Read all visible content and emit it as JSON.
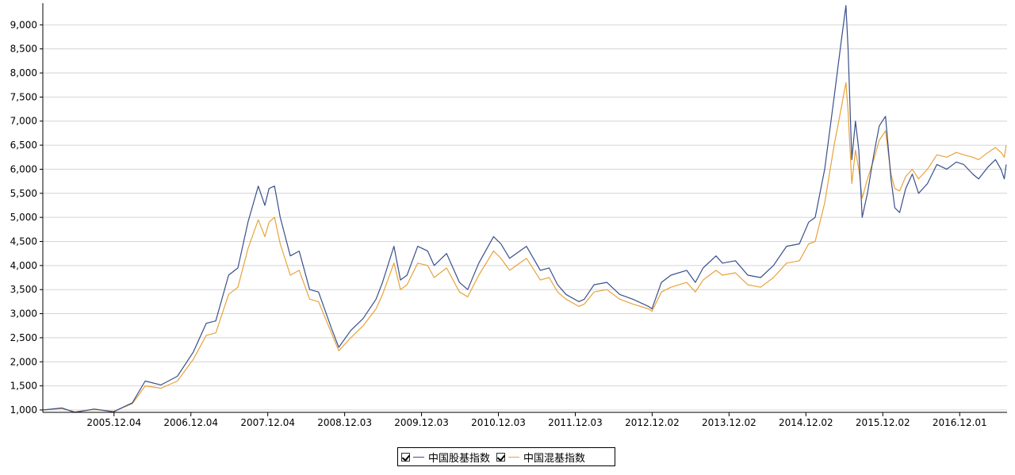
{
  "chart_data": {
    "type": "line",
    "title": "",
    "xlabel": "",
    "ylabel": "",
    "ylim": [
      950,
      9450
    ],
    "y_ticks": [
      1000,
      1500,
      2000,
      2500,
      3000,
      3500,
      4000,
      4500,
      5000,
      5500,
      6000,
      6500,
      7000,
      7500,
      8000,
      8500,
      9000
    ],
    "y_tick_labels": [
      "1,000",
      "1,500",
      "2,000",
      "2,500",
      "3,000",
      "3,500",
      "4,000",
      "4,500",
      "5,000",
      "5,500",
      "6,000",
      "6,500",
      "7,000",
      "7,500",
      "8,000",
      "8,500",
      "9,000"
    ],
    "xlim": [
      "2004-12-31",
      "2017-07-14"
    ],
    "x_tick_labels": [
      "2005.12.04",
      "2006.12.04",
      "2007.12.04",
      "2008.12.03",
      "2009.12.03",
      "2010.12.03",
      "2011.12.03",
      "2012.12.02",
      "2013.12.02",
      "2014.12.02",
      "2015.12.02",
      "2016.12.01"
    ],
    "grid": "horizontal",
    "legend_position": "bottom",
    "legend": {
      "items": [
        {
          "label": "中国股基指数",
          "color": "#3a4f8c",
          "checked": true
        },
        {
          "label": "中国混基指数",
          "color": "#e8a33a",
          "checked": true
        }
      ]
    },
    "series": [
      {
        "name": "中国股基指数",
        "color": "#3a4f8c",
        "points": [
          [
            "2004-12-31",
            1000
          ],
          [
            "2005-03-31",
            1040
          ],
          [
            "2005-06-01",
            950
          ],
          [
            "2005-09-01",
            1020
          ],
          [
            "2005-12-01",
            960
          ],
          [
            "2006-03-01",
            1150
          ],
          [
            "2006-05-01",
            1600
          ],
          [
            "2006-07-15",
            1520
          ],
          [
            "2006-10-01",
            1700
          ],
          [
            "2006-12-15",
            2200
          ],
          [
            "2007-02-15",
            2800
          ],
          [
            "2007-04-01",
            2850
          ],
          [
            "2007-06-01",
            3800
          ],
          [
            "2007-07-15",
            3950
          ],
          [
            "2007-09-01",
            4900
          ],
          [
            "2007-10-20",
            5650
          ],
          [
            "2007-11-20",
            5250
          ],
          [
            "2007-12-10",
            5600
          ],
          [
            "2008-01-05",
            5650
          ],
          [
            "2008-02-01",
            5000
          ],
          [
            "2008-03-20",
            4200
          ],
          [
            "2008-05-01",
            4300
          ],
          [
            "2008-06-20",
            3500
          ],
          [
            "2008-08-01",
            3450
          ],
          [
            "2008-10-01",
            2700
          ],
          [
            "2008-11-05",
            2300
          ],
          [
            "2009-01-01",
            2650
          ],
          [
            "2009-03-01",
            2900
          ],
          [
            "2009-05-01",
            3300
          ],
          [
            "2009-06-01",
            3650
          ],
          [
            "2009-07-25",
            4400
          ],
          [
            "2009-08-25",
            3700
          ],
          [
            "2009-09-25",
            3800
          ],
          [
            "2009-11-15",
            4400
          ],
          [
            "2010-01-01",
            4300
          ],
          [
            "2010-02-01",
            4000
          ],
          [
            "2010-04-01",
            4250
          ],
          [
            "2010-06-01",
            3650
          ],
          [
            "2010-07-10",
            3500
          ],
          [
            "2010-09-01",
            4050
          ],
          [
            "2010-11-10",
            4600
          ],
          [
            "2010-12-15",
            4450
          ],
          [
            "2011-01-25",
            4150
          ],
          [
            "2011-04-15",
            4400
          ],
          [
            "2011-06-20",
            3900
          ],
          [
            "2011-08-01",
            3950
          ],
          [
            "2011-09-10",
            3600
          ],
          [
            "2011-10-20",
            3400
          ],
          [
            "2011-12-20",
            3250
          ],
          [
            "2012-01-15",
            3300
          ],
          [
            "2012-03-01",
            3600
          ],
          [
            "2012-05-01",
            3650
          ],
          [
            "2012-07-01",
            3400
          ],
          [
            "2012-09-01",
            3300
          ],
          [
            "2012-11-15",
            3150
          ],
          [
            "2012-12-01",
            3100
          ],
          [
            "2013-01-15",
            3650
          ],
          [
            "2013-03-01",
            3800
          ],
          [
            "2013-05-15",
            3900
          ],
          [
            "2013-06-25",
            3650
          ],
          [
            "2013-08-01",
            3950
          ],
          [
            "2013-10-01",
            4200
          ],
          [
            "2013-11-01",
            4050
          ],
          [
            "2014-01-01",
            4100
          ],
          [
            "2014-03-01",
            3800
          ],
          [
            "2014-05-01",
            3750
          ],
          [
            "2014-07-01",
            4000
          ],
          [
            "2014-09-01",
            4400
          ],
          [
            "2014-11-01",
            4450
          ],
          [
            "2014-12-15",
            4900
          ],
          [
            "2015-01-15",
            5000
          ],
          [
            "2015-03-01",
            6000
          ],
          [
            "2015-04-15",
            7500
          ],
          [
            "2015-05-20",
            8700
          ],
          [
            "2015-06-10",
            9400
          ],
          [
            "2015-06-20",
            8500
          ],
          [
            "2015-07-08",
            6200
          ],
          [
            "2015-07-25",
            7000
          ],
          [
            "2015-08-10",
            6400
          ],
          [
            "2015-08-26",
            5000
          ],
          [
            "2015-09-20",
            5500
          ],
          [
            "2015-10-20",
            6300
          ],
          [
            "2015-11-15",
            6900
          ],
          [
            "2015-12-15",
            7100
          ],
          [
            "2016-01-10",
            5800
          ],
          [
            "2016-01-28",
            5200
          ],
          [
            "2016-02-20",
            5100
          ],
          [
            "2016-03-20",
            5600
          ],
          [
            "2016-04-20",
            5900
          ],
          [
            "2016-05-20",
            5500
          ],
          [
            "2016-07-01",
            5700
          ],
          [
            "2016-08-15",
            6100
          ],
          [
            "2016-10-01",
            6000
          ],
          [
            "2016-11-15",
            6150
          ],
          [
            "2016-12-20",
            6100
          ],
          [
            "2017-02-01",
            5900
          ],
          [
            "2017-03-01",
            5800
          ],
          [
            "2017-04-15",
            6050
          ],
          [
            "2017-05-20",
            6200
          ],
          [
            "2017-06-15",
            6000
          ],
          [
            "2017-07-01",
            5800
          ],
          [
            "2017-07-10",
            6100
          ]
        ]
      },
      {
        "name": "中国混基指数",
        "color": "#e8a33a",
        "points": [
          [
            "2004-12-31",
            1000
          ],
          [
            "2005-03-31",
            1030
          ],
          [
            "2005-06-01",
            960
          ],
          [
            "2005-09-01",
            1010
          ],
          [
            "2005-12-01",
            970
          ],
          [
            "2006-03-01",
            1130
          ],
          [
            "2006-05-01",
            1500
          ],
          [
            "2006-07-15",
            1450
          ],
          [
            "2006-10-01",
            1600
          ],
          [
            "2006-12-15",
            2050
          ],
          [
            "2007-02-15",
            2550
          ],
          [
            "2007-04-01",
            2600
          ],
          [
            "2007-06-01",
            3400
          ],
          [
            "2007-07-15",
            3550
          ],
          [
            "2007-09-01",
            4350
          ],
          [
            "2007-10-20",
            4950
          ],
          [
            "2007-11-20",
            4600
          ],
          [
            "2007-12-10",
            4900
          ],
          [
            "2008-01-05",
            5000
          ],
          [
            "2008-02-01",
            4450
          ],
          [
            "2008-03-20",
            3800
          ],
          [
            "2008-05-01",
            3900
          ],
          [
            "2008-06-20",
            3300
          ],
          [
            "2008-08-01",
            3250
          ],
          [
            "2008-10-01",
            2600
          ],
          [
            "2008-11-05",
            2230
          ],
          [
            "2009-01-01",
            2500
          ],
          [
            "2009-03-01",
            2750
          ],
          [
            "2009-05-01",
            3100
          ],
          [
            "2009-06-01",
            3400
          ],
          [
            "2009-07-25",
            4050
          ],
          [
            "2009-08-25",
            3500
          ],
          [
            "2009-09-25",
            3600
          ],
          [
            "2009-11-15",
            4050
          ],
          [
            "2010-01-01",
            4000
          ],
          [
            "2010-02-01",
            3750
          ],
          [
            "2010-04-01",
            3950
          ],
          [
            "2010-06-01",
            3450
          ],
          [
            "2010-07-10",
            3350
          ],
          [
            "2010-09-01",
            3800
          ],
          [
            "2010-11-10",
            4300
          ],
          [
            "2010-12-15",
            4150
          ],
          [
            "2011-01-25",
            3900
          ],
          [
            "2011-04-15",
            4150
          ],
          [
            "2011-06-20",
            3700
          ],
          [
            "2011-08-01",
            3750
          ],
          [
            "2011-09-10",
            3450
          ],
          [
            "2011-10-20",
            3300
          ],
          [
            "2011-12-20",
            3150
          ],
          [
            "2012-01-15",
            3200
          ],
          [
            "2012-03-01",
            3450
          ],
          [
            "2012-05-01",
            3500
          ],
          [
            "2012-07-01",
            3300
          ],
          [
            "2012-09-01",
            3200
          ],
          [
            "2012-11-15",
            3100
          ],
          [
            "2012-12-01",
            3050
          ],
          [
            "2013-01-15",
            3450
          ],
          [
            "2013-03-01",
            3550
          ],
          [
            "2013-05-15",
            3650
          ],
          [
            "2013-06-25",
            3450
          ],
          [
            "2013-08-01",
            3700
          ],
          [
            "2013-10-01",
            3900
          ],
          [
            "2013-11-01",
            3800
          ],
          [
            "2014-01-01",
            3850
          ],
          [
            "2014-03-01",
            3600
          ],
          [
            "2014-05-01",
            3550
          ],
          [
            "2014-07-01",
            3750
          ],
          [
            "2014-09-01",
            4050
          ],
          [
            "2014-11-01",
            4100
          ],
          [
            "2014-12-15",
            4450
          ],
          [
            "2015-01-15",
            4500
          ],
          [
            "2015-03-01",
            5300
          ],
          [
            "2015-04-15",
            6500
          ],
          [
            "2015-05-20",
            7300
          ],
          [
            "2015-06-10",
            7800
          ],
          [
            "2015-06-20",
            7200
          ],
          [
            "2015-07-08",
            5700
          ],
          [
            "2015-07-25",
            6400
          ],
          [
            "2015-08-10",
            6000
          ],
          [
            "2015-08-26",
            5400
          ],
          [
            "2015-09-20",
            5800
          ],
          [
            "2015-10-20",
            6200
          ],
          [
            "2015-11-15",
            6600
          ],
          [
            "2015-12-15",
            6800
          ],
          [
            "2016-01-10",
            5900
          ],
          [
            "2016-01-28",
            5600
          ],
          [
            "2016-02-20",
            5550
          ],
          [
            "2016-03-20",
            5850
          ],
          [
            "2016-04-20",
            6000
          ],
          [
            "2016-05-20",
            5800
          ],
          [
            "2016-07-01",
            6000
          ],
          [
            "2016-08-15",
            6300
          ],
          [
            "2016-10-01",
            6250
          ],
          [
            "2016-11-15",
            6350
          ],
          [
            "2016-12-20",
            6300
          ],
          [
            "2017-02-01",
            6250
          ],
          [
            "2017-03-01",
            6200
          ],
          [
            "2017-04-15",
            6350
          ],
          [
            "2017-05-20",
            6450
          ],
          [
            "2017-06-15",
            6350
          ],
          [
            "2017-07-01",
            6250
          ],
          [
            "2017-07-10",
            6500
          ]
        ]
      }
    ]
  }
}
